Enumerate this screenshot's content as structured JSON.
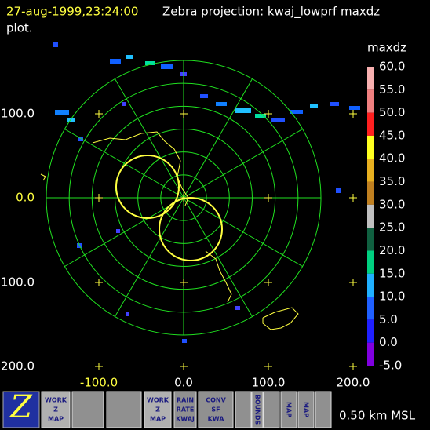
{
  "header": {
    "time": "27-aug-1999,23:24:00",
    "title": "Zebra projection: kwaj_lowprf maxdz",
    "title_cont": "plot."
  },
  "colorbar": {
    "field": "maxdz",
    "labels": [
      "60.0",
      "55.0",
      "50.0",
      "45.0",
      "40.0",
      "35.0",
      "30.0",
      "25.0",
      "20.0",
      "15.0",
      "10.0",
      "5.0",
      "0.0",
      "-5.0"
    ]
  },
  "axes": {
    "y_labels": [
      "100.0",
      "0.0",
      "100.0",
      "200.0"
    ],
    "x_labels": [
      "-100.0",
      "0.0",
      "100.0",
      "200.0"
    ]
  },
  "icons": [
    {
      "lines": [
        "WORK",
        "Z",
        "MAP"
      ]
    },
    {
      "lines": [
        "RAIN",
        "RATE",
        "KWAJ"
      ]
    },
    {
      "lines": [
        "WORK",
        "Z",
        "MAP"
      ]
    },
    {
      "lines": [
        "CONV",
        "SF",
        "KWA"
      ]
    },
    {
      "lines": [
        "BOUNDS"
      ]
    },
    {
      "lines": [
        "MAP"
      ]
    },
    {
      "lines": [
        "MAP"
      ]
    }
  ],
  "status": "0.50 km MSL"
}
